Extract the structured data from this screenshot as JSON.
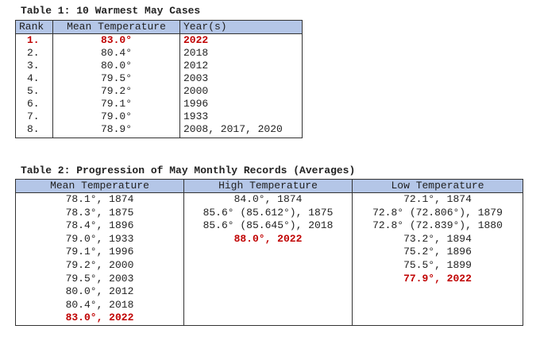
{
  "table1": {
    "title": "Table 1: 10 Warmest May Cases",
    "header": [
      "Rank",
      "Mean Temperature",
      "Year(s)"
    ],
    "rows": [
      [
        "1.",
        "83.0°",
        "2022"
      ],
      [
        "2.",
        "80.4°",
        "2018"
      ],
      [
        "3.",
        "80.0°",
        "2012"
      ],
      [
        "4.",
        "79.5°",
        "2003"
      ],
      [
        "5.",
        "79.2°",
        "2000"
      ],
      [
        "6.",
        "79.1°",
        "1996"
      ],
      [
        "7.",
        "79.0°",
        "1933"
      ],
      [
        "8.",
        "78.9°",
        "2008, 2017, 2020"
      ]
    ],
    "highlight_rows": [
      0
    ]
  },
  "table2": {
    "title": "Table 2: Progression of May Monthly Records (Averages)",
    "columns": [
      {
        "header": "Mean Temperature",
        "entries": [
          "78.1°, 1874",
          "78.3°, 1875",
          "78.4°, 1896",
          "79.0°, 1933",
          "79.1°, 1996",
          "79.2°, 2000",
          "79.5°, 2003",
          "80.0°, 2012",
          "80.4°, 2018",
          "83.0°, 2022"
        ],
        "highlight": [
          9
        ]
      },
      {
        "header": "High Temperature",
        "entries": [
          "84.0°, 1874",
          "85.6° (85.612°), 1875",
          "85.6° (85.645°), 2018",
          "88.0°, 2022"
        ],
        "highlight": [
          3
        ]
      },
      {
        "header": "Low Temperature",
        "entries": [
          "72.1°, 1874",
          "72.8° (72.806°), 1879",
          "72.8° (72.839°), 1880",
          "73.2°, 1894",
          "75.2°, 1896",
          "75.5°, 1899",
          "77.9°, 2022"
        ],
        "highlight": [
          6
        ]
      }
    ]
  },
  "highlight_color": "#c00000",
  "header_color": "#b4c6e7"
}
